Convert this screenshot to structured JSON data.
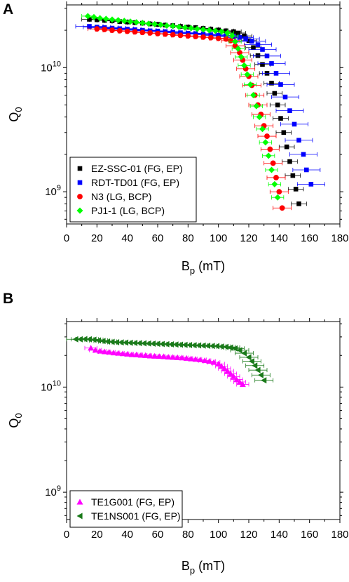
{
  "figure": {
    "panels": [
      "A",
      "B"
    ]
  },
  "chart_data": [
    {
      "type": "scatter",
      "panel_label": "A",
      "xlabel_main": "B",
      "xlabel_sub": "p",
      "xlabel_unit": " (mT)",
      "ylabel_main": "Q",
      "ylabel_sub": "0",
      "xlim": [
        0,
        180
      ],
      "ylim": [
        550000000.0,
        32000000000.0
      ],
      "yscale": "log",
      "x_ticks": [
        0,
        20,
        40,
        60,
        80,
        100,
        120,
        140,
        160,
        180
      ],
      "y_tick_labels": [
        {
          "value": 10000000000.0,
          "base": "10",
          "exp": "10"
        },
        {
          "value": 1000000000.0,
          "base": "10",
          "exp": "9"
        }
      ],
      "legend_position": "bottom-left",
      "error_bars": "horizontal",
      "series": [
        {
          "name": "EZ-SSC-01 (FG, EP)",
          "color": "#000000",
          "marker": "square",
          "x": [
            15,
            20,
            25,
            30,
            35,
            40,
            45,
            50,
            55,
            60,
            65,
            70,
            75,
            80,
            85,
            90,
            95,
            100,
            105,
            110,
            113,
            117,
            120,
            123,
            126,
            129,
            132,
            135,
            137,
            139,
            141,
            143,
            145,
            147,
            149,
            151,
            153
          ],
          "y": [
            24500000000.0,
            24300000000.0,
            24000000000.0,
            23800000000.0,
            23500000000.0,
            23300000000.0,
            23000000000.0,
            22800000000.0,
            22500000000.0,
            22300000000.0,
            22000000000.0,
            21800000000.0,
            21500000000.0,
            21200000000.0,
            21000000000.0,
            20700000000.0,
            20400000000.0,
            20100000000.0,
            19800000000.0,
            19500000000.0,
            19000000000.0,
            18000000000.0,
            16500000000.0,
            14500000000.0,
            12500000000.0,
            10600000000.0,
            9000000000.0,
            7500000000.0,
            6200000000.0,
            5000000000.0,
            3900000000.0,
            3000000000.0,
            2300000000.0,
            1750000000.0,
            1350000000.0,
            1050000000.0,
            800000000.0
          ],
          "xerr": 5
        },
        {
          "name": "RDT-TD01 (FG, EP)",
          "color": "#0000ff",
          "marker": "square",
          "x": [
            15,
            20,
            25,
            30,
            35,
            40,
            45,
            50,
            55,
            60,
            65,
            70,
            75,
            80,
            85,
            90,
            95,
            100,
            105,
            110,
            114,
            118,
            122,
            126,
            129,
            132,
            135,
            138,
            141,
            144,
            147,
            150,
            153,
            156,
            158,
            161
          ],
          "y": [
            21500000000.0,
            21200000000.0,
            21000000000.0,
            20800000000.0,
            20600000000.0,
            20400000000.0,
            20200000000.0,
            20000000000.0,
            19800000000.0,
            19700000000.0,
            19500000000.0,
            19300000000.0,
            19100000000.0,
            18900000000.0,
            18800000000.0,
            18600000000.0,
            18400000000.0,
            18200000000.0,
            18000000000.0,
            17800000000.0,
            17500000000.0,
            17000000000.0,
            16300000000.0,
            15300000000.0,
            14000000000.0,
            12400000000.0,
            10800000000.0,
            9000000000.0,
            7300000000.0,
            5800000000.0,
            4500000000.0,
            3500000000.0,
            2600000000.0,
            2000000000.0,
            1500000000.0,
            1150000000.0
          ],
          "xerr": 9
        },
        {
          "name": "N3 (LG, BCP)",
          "color": "#ff0000",
          "marker": "circle",
          "x": [
            20,
            25,
            30,
            35,
            40,
            45,
            50,
            55,
            60,
            65,
            70,
            75,
            80,
            85,
            90,
            95,
            100,
            105,
            108,
            111,
            114,
            116,
            118,
            120,
            122,
            124,
            126,
            128,
            130,
            132,
            134,
            136,
            138,
            140,
            142
          ],
          "y": [
            20500000000.0,
            20300000000.0,
            20000000000.0,
            19800000000.0,
            19600000000.0,
            19400000000.0,
            19200000000.0,
            19000000000.0,
            18800000000.0,
            18600000000.0,
            18400000000.0,
            18200000000.0,
            18000000000.0,
            17800000000.0,
            17600000000.0,
            17400000000.0,
            17200000000.0,
            17000000000.0,
            16500000000.0,
            15000000000.0,
            13200000000.0,
            11500000000.0,
            9800000000.0,
            8500000000.0,
            7200000000.0,
            6000000000.0,
            5000000000.0,
            4200000000.0,
            3400000000.0,
            2800000000.0,
            2200000000.0,
            1700000000.0,
            1300000000.0,
            1000000000.0,
            740000000.0
          ],
          "xerr": 6
        },
        {
          "name": "PJ1-1 (LG, BCP)",
          "color": "#00ff00",
          "marker": "diamond",
          "x": [
            14,
            18,
            22,
            26,
            30,
            34,
            38,
            42,
            46,
            50,
            54,
            58,
            62,
            66,
            70,
            74,
            78,
            82,
            86,
            90,
            94,
            98,
            102,
            106,
            109,
            111,
            113,
            115,
            117,
            119,
            121,
            123,
            125,
            127,
            129,
            131,
            133,
            135,
            137,
            139
          ],
          "y": [
            26000000000.0,
            25500000000.0,
            25000000000.0,
            24700000000.0,
            24400000000.0,
            24100000000.0,
            23800000000.0,
            23500000000.0,
            23200000000.0,
            22900000000.0,
            22600000000.0,
            22400000000.0,
            22100000000.0,
            21800000000.0,
            21600000000.0,
            21300000000.0,
            21000000000.0,
            20800000000.0,
            20500000000.0,
            20300000000.0,
            20000000000.0,
            19800000000.0,
            19500000000.0,
            19000000000.0,
            18000000000.0,
            16200000000.0,
            14200000000.0,
            12200000000.0,
            10400000000.0,
            8800000000.0,
            7300000000.0,
            6000000000.0,
            4900000000.0,
            4000000000.0,
            3200000000.0,
            2500000000.0,
            1950000000.0,
            1500000000.0,
            1150000000.0,
            900000000.0
          ],
          "xerr": 4
        }
      ]
    },
    {
      "type": "scatter",
      "panel_label": "B",
      "xlabel_main": "B",
      "xlabel_sub": "p",
      "xlabel_unit": " (mT)",
      "ylabel_main": "Q",
      "ylabel_sub": "0",
      "xlim": [
        0,
        180
      ],
      "ylim": [
        550000000.0,
        42000000000.0
      ],
      "yscale": "log",
      "x_ticks": [
        0,
        20,
        40,
        60,
        80,
        100,
        120,
        140,
        160,
        180
      ],
      "y_tick_labels": [
        {
          "value": 10000000000.0,
          "base": "10",
          "exp": "10"
        },
        {
          "value": 1000000000.0,
          "base": "10",
          "exp": "9"
        }
      ],
      "legend_position": "bottom-left",
      "error_bars": "horizontal",
      "series": [
        {
          "name": "TE1G001 (FG, EP)",
          "color": "#ff00ff",
          "marker": "triangle-up",
          "x": [
            16,
            19,
            22,
            25,
            28,
            31,
            34,
            37,
            40,
            43,
            46,
            49,
            52,
            55,
            58,
            61,
            64,
            67,
            70,
            73,
            76,
            79,
            82,
            85,
            88,
            91,
            94,
            97,
            100,
            102,
            104,
            106,
            108,
            110,
            112,
            114,
            116
          ],
          "y": [
            23500000000.0,
            22500000000.0,
            22000000000.0,
            21700000000.0,
            21500000000.0,
            21200000000.0,
            21000000000.0,
            20800000000.0,
            20600000000.0,
            20400000000.0,
            20300000000.0,
            20100000000.0,
            20000000000.0,
            19800000000.0,
            19700000000.0,
            19600000000.0,
            19500000000.0,
            19300000000.0,
            19200000000.0,
            19100000000.0,
            19000000000.0,
            18800000000.0,
            18600000000.0,
            18400000000.0,
            18200000000.0,
            17900000000.0,
            17600000000.0,
            17200000000.0,
            16600000000.0,
            15800000000.0,
            15000000000.0,
            14200000000.0,
            13400000000.0,
            12600000000.0,
            11800000000.0,
            11200000000.0,
            10600000000.0
          ],
          "xerr": 4
        },
        {
          "name": "TE1NS001 (FG, EP)",
          "color": "#1a7a1a",
          "marker": "triangle-left",
          "x": [
            6,
            9,
            12,
            15,
            18,
            21,
            24,
            27,
            30,
            33,
            36,
            39,
            42,
            45,
            48,
            51,
            54,
            57,
            60,
            63,
            66,
            69,
            72,
            75,
            78,
            81,
            84,
            87,
            90,
            93,
            96,
            99,
            102,
            105,
            108,
            111,
            114,
            117,
            120,
            122,
            124,
            126,
            128,
            130
          ],
          "y": [
            28500000000.0,
            28500000000.0,
            28600000000.0,
            28500000000.0,
            28200000000.0,
            27800000000.0,
            27400000000.0,
            27100000000.0,
            26900000000.0,
            26700000000.0,
            26600000000.0,
            26500000000.0,
            26400000000.0,
            26300000000.0,
            26200000000.0,
            26100000000.0,
            26000000000.0,
            25900000000.0,
            25800000000.0,
            25700000000.0,
            25600000000.0,
            25500000000.0,
            25400000000.0,
            25300000000.0,
            25200000000.0,
            25100000000.0,
            25000000000.0,
            24900000000.0,
            24800000000.0,
            24700000000.0,
            24600000000.0,
            24500000000.0,
            24300000000.0,
            24100000000.0,
            23800000000.0,
            23300000000.0,
            22400000000.0,
            21000000000.0,
            19200000000.0,
            17600000000.0,
            16000000000.0,
            14500000000.0,
            13000000000.0,
            11600000000.0
          ],
          "xerr": 6
        }
      ]
    }
  ]
}
